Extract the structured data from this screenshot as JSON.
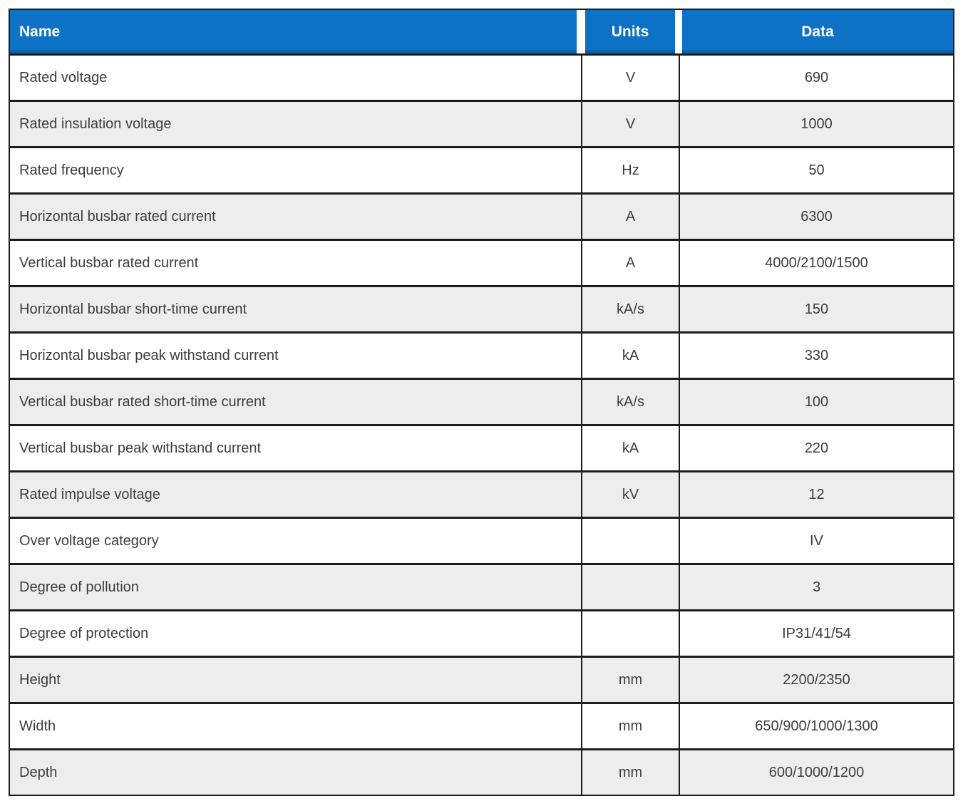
{
  "colors": {
    "header_bg": "#0d71c5",
    "header_text": "#ffffff",
    "row_bg": "#ffffff",
    "row_alt_bg": "#ededed",
    "border": "#1c1c1c",
    "body_text": "#3d3d3d"
  },
  "table": {
    "columns": {
      "name": "Name",
      "units": "Units",
      "data": "Data"
    },
    "rows": [
      {
        "name": "Rated voltage",
        "units": "V",
        "data": "690"
      },
      {
        "name": "Rated insulation voltage",
        "units": "V",
        "data": "1000"
      },
      {
        "name": "Rated frequency",
        "units": "Hz",
        "data": "50"
      },
      {
        "name": "Horizontal busbar rated current",
        "units": "A",
        "data": "6300"
      },
      {
        "name": "Vertical busbar rated current",
        "units": "A",
        "data": "4000/2100/1500"
      },
      {
        "name": "Horizontal busbar short-time current",
        "units": "kA/s",
        "data": "150"
      },
      {
        "name": "Horizontal busbar peak withstand current",
        "units": "kA",
        "data": "330"
      },
      {
        "name": "Vertical busbar rated short-time current",
        "units": "kA/s",
        "data": "100"
      },
      {
        "name": "Vertical busbar peak withstand current",
        "units": "kA",
        "data": "220"
      },
      {
        "name": "Rated impulse voltage",
        "units": "kV",
        "data": "12"
      },
      {
        "name": "Over voltage category",
        "units": "",
        "data": "IV"
      },
      {
        "name": "Degree of pollution",
        "units": "",
        "data": "3"
      },
      {
        "name": "Degree of protection",
        "units": "",
        "data": "IP31/41/54"
      },
      {
        "name": "Height",
        "units": "mm",
        "data": "2200/2350"
      },
      {
        "name": "Width",
        "units": "mm",
        "data": "650/900/1000/1300"
      },
      {
        "name": "Depth",
        "units": "mm",
        "data": "600/1000/1200"
      }
    ]
  }
}
